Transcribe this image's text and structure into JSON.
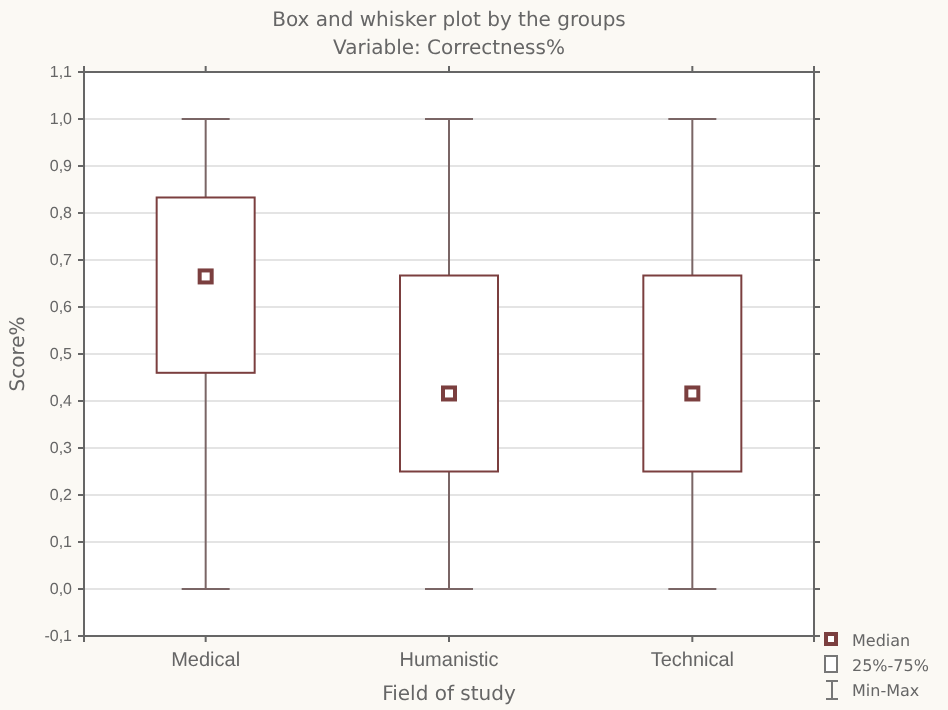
{
  "chart_data": {
    "type": "box",
    "title": "Box and whisker plot by the groups",
    "subtitle": "Variable: Correctness%",
    "xlabel": "Field of study",
    "ylabel": "Score%",
    "categories": [
      "Medical",
      "Humanistic",
      "Technical"
    ],
    "boxes": [
      {
        "low": 0,
        "q1": 0.46,
        "median": 0.665,
        "q3": 0.833,
        "high": 1.0
      },
      {
        "low": 0,
        "q1": 0.25,
        "median": 0.416,
        "q3": 0.667,
        "high": 1.0
      },
      {
        "low": 0,
        "q1": 0.25,
        "median": 0.416,
        "q3": 0.667,
        "high": 1.0
      }
    ],
    "color": "#7b3f3f",
    "ylim": [
      -0.1,
      1.1
    ],
    "yticks": [
      {
        "value": -0.1,
        "label": "-0,1"
      },
      {
        "value": 0,
        "label": "0,0"
      },
      {
        "value": 0.1,
        "label": "0,1"
      },
      {
        "value": 0.2,
        "label": "0,2"
      },
      {
        "value": 0.3,
        "label": "0,3"
      },
      {
        "value": 0.4,
        "label": "0,4"
      },
      {
        "value": 0.5,
        "label": "0,5"
      },
      {
        "value": 0.6,
        "label": "0,6"
      },
      {
        "value": 0.7,
        "label": "0,7"
      },
      {
        "value": 0.8,
        "label": "0,8"
      },
      {
        "value": 0.9,
        "label": "0,9"
      },
      {
        "value": 1.0,
        "label": "1,0"
      },
      {
        "value": 1.1,
        "label": "1,1"
      }
    ],
    "grid": "y",
    "annotations": [
      "Median",
      "25%-75%",
      "Min-Max"
    ]
  }
}
